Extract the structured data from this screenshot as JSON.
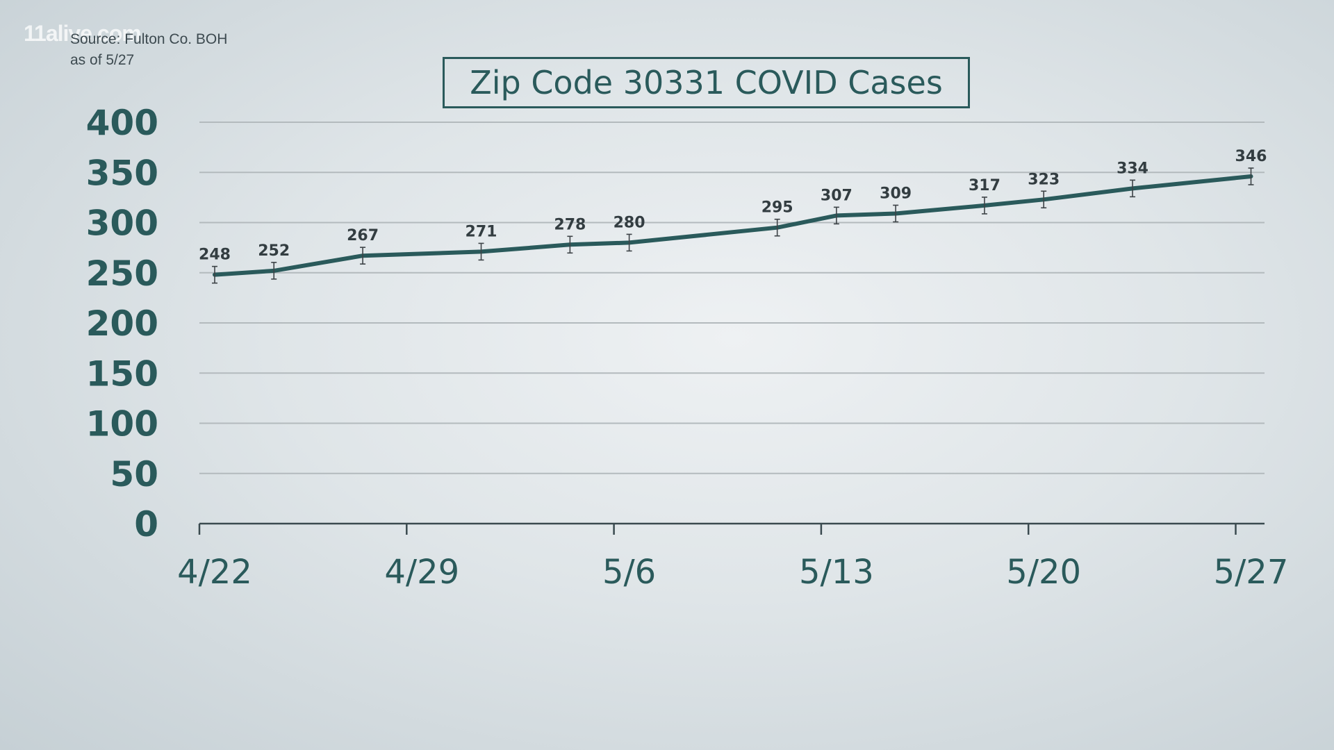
{
  "watermark": "11alive.com",
  "source": {
    "line1": "Source: Fulton Co. BOH",
    "line2": "as of 5/27"
  },
  "colors": {
    "line": "#2a5a5b",
    "grid": "#b3babd",
    "axis": "#3a4a4f",
    "errorbar": "#3d4347"
  },
  "chart_data": {
    "type": "line",
    "title": "Zip Code 30331 COVID Cases",
    "xlabel": "",
    "ylabel": "",
    "ylim": [
      0,
      400
    ],
    "yticks": [
      "0",
      "50",
      "100",
      "150",
      "200",
      "250",
      "300",
      "350",
      "400"
    ],
    "xlim": [
      "4/22",
      "5/27"
    ],
    "xticks": [
      "4/22",
      "4/29",
      "5/6",
      "5/13",
      "5/20",
      "5/27"
    ],
    "grid": true,
    "legend": "none",
    "error_bars": true,
    "x": [
      "4/22",
      "4/24",
      "4/27",
      "5/1",
      "5/4",
      "5/6",
      "5/11",
      "5/13",
      "5/15",
      "5/18",
      "5/20",
      "5/23",
      "5/27"
    ],
    "values": [
      248,
      252,
      267,
      271,
      278,
      280,
      295,
      307,
      309,
      317,
      323,
      334,
      346
    ]
  }
}
